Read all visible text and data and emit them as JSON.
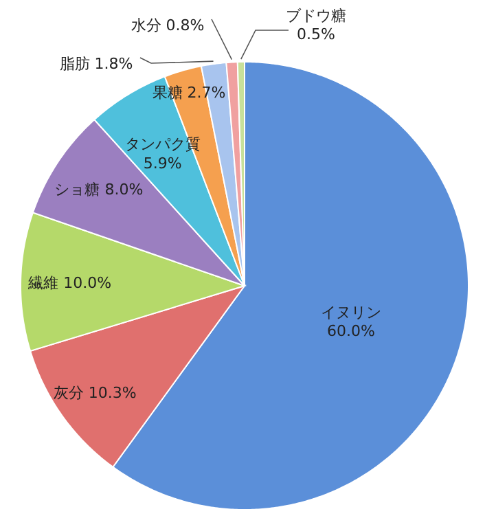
{
  "chart_data": {
    "type": "pie",
    "categories": [
      "イヌリン",
      "灰分",
      "繊維",
      "ショ糖",
      "タンパク質",
      "果糖",
      "脂肪",
      "水分",
      "ブドウ糖"
    ],
    "values": [
      60.0,
      10.3,
      10.0,
      8.0,
      5.9,
      2.7,
      1.8,
      0.8,
      0.5
    ],
    "value_labels": [
      "60.0%",
      "10.3%",
      "10.0%",
      "8.0%",
      "5.9%",
      "2.7%",
      "1.8%",
      "0.8%",
      "0.5%"
    ],
    "colors": [
      "#5b8fd9",
      "#e0706e",
      "#b5d96a",
      "#9b7fc0",
      "#4fc0dc",
      "#f5a04f",
      "#a8c4ee",
      "#f0a0a0",
      "#c8e09a"
    ]
  }
}
